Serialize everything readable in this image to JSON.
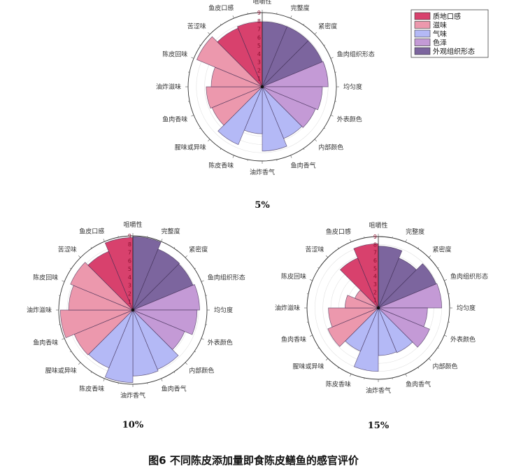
{
  "caption": "图6 不同陈皮添加量即食陈皮鳝鱼的感官评价",
  "legend": [
    {
      "name": "质地口感",
      "color": "#d8416d"
    },
    {
      "name": "滋味",
      "color": "#ec98ad"
    },
    {
      "name": "气味",
      "color": "#b4b9f6"
    },
    {
      "name": "色泽",
      "color": "#c49ad6"
    },
    {
      "name": "外观组织形态",
      "color": "#7c659e"
    }
  ],
  "chart_data": [
    {
      "type": "polar-bar",
      "title": "5%",
      "rlim": [
        0,
        9
      ],
      "r_ticks": [
        "1",
        "2",
        "3",
        "4",
        "5",
        "6",
        "7",
        "8",
        "9"
      ],
      "categories": [
        "咀嚼性",
        "完整度",
        "紧密度",
        "鱼肉组织形态",
        "均匀度",
        "外表颜色",
        "内部颜色",
        "鱼肉香气",
        "油炸香气",
        "陈皮香味",
        "腥味或异味",
        "鱼肉香味",
        "油炸滋味",
        "陈皮回味",
        "苦涩味",
        "鱼皮口感"
      ],
      "groups": [
        "质地口感",
        "外观组织形态",
        "外观组织形态",
        "外观组织形态",
        "色泽",
        "色泽",
        "色泽",
        "气味",
        "气味",
        "气味",
        "气味",
        "滋味",
        "滋味",
        "滋味",
        "滋味",
        "质地口感"
      ],
      "values": [
        7.9,
        7.9,
        7.9,
        7.9,
        8.0,
        7.3,
        7.0,
        6.8,
        7.8,
        5.7,
        7.6,
        6.6,
        6.8,
        6.2,
        8.6,
        7.7
      ]
    },
    {
      "type": "polar-bar",
      "title": "10%",
      "rlim": [
        0,
        9
      ],
      "r_ticks": [
        "1",
        "2",
        "3",
        "4",
        "5",
        "6",
        "7",
        "8",
        "9"
      ],
      "categories": [
        "咀嚼性",
        "完整度",
        "紧密度",
        "鱼肉组织形态",
        "均匀度",
        "外表颜色",
        "内部颜色",
        "鱼肉香气",
        "油炸香气",
        "陈皮香味",
        "腥味或异味",
        "鱼肉香味",
        "油炸滋味",
        "陈皮回味",
        "苦涩味",
        "鱼皮口感"
      ],
      "groups": [
        "质地口感",
        "外观组织形态",
        "外观组织形态",
        "外观组织形态",
        "色泽",
        "色泽",
        "色泽",
        "气味",
        "气味",
        "气味",
        "气味",
        "滋味",
        "滋味",
        "滋味",
        "滋味",
        "质地口感"
      ],
      "values": [
        8.8,
        8.9,
        8.0,
        7.9,
        8.1,
        7.8,
        6.8,
        7.8,
        8.0,
        8.8,
        7.6,
        7.7,
        8.8,
        7.8,
        8.2,
        7.7
      ]
    },
    {
      "type": "polar-bar",
      "title": "15%",
      "rlim": [
        0,
        9
      ],
      "r_ticks": [
        "1",
        "2",
        "3",
        "4",
        "5",
        "6",
        "7",
        "8",
        "9"
      ],
      "categories": [
        "咀嚼性",
        "完整度",
        "紧密度",
        "鱼肉组织形态",
        "均匀度",
        "外表颜色",
        "内部颜色",
        "鱼肉香气",
        "油炸香气",
        "陈皮香味",
        "腥味或异味",
        "鱼肉香味",
        "油炸滋味",
        "陈皮回味",
        "苦涩味",
        "鱼皮口感"
      ],
      "groups": [
        "质地口感",
        "外观组织形态",
        "外观组织形态",
        "外观组织形态",
        "色泽",
        "色泽",
        "色泽",
        "气味",
        "气味",
        "气味",
        "气味",
        "滋味",
        "滋味",
        "滋味",
        "滋味",
        "质地口感"
      ],
      "values": [
        8.1,
        7.8,
        6.8,
        7.9,
        8.0,
        6.2,
        7.0,
        6.1,
        6.0,
        8.0,
        5.9,
        6.9,
        6.3,
        4.2,
        3.2,
        6.8
      ]
    }
  ]
}
